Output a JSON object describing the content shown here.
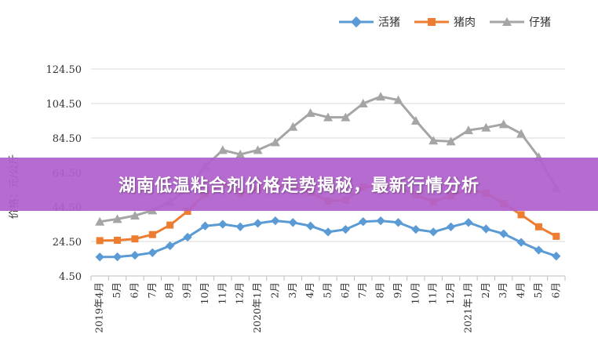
{
  "banner": {
    "title": "湖南低温粘合剂价格走势揭秘，最新行情分析"
  },
  "chart_data": {
    "type": "line",
    "ylabel": "价格：元/公斤",
    "ylim": [
      4.5,
      124.5
    ],
    "yticks": [
      "124.50",
      "104.50",
      "84.50",
      "64.50",
      "44.50",
      "24.50",
      "4.50"
    ],
    "ytick_values": [
      124.5,
      104.5,
      84.5,
      64.5,
      44.5,
      24.5,
      4.5
    ],
    "categories": [
      "2019年4月",
      "5月",
      "6月",
      "7月",
      "8月",
      "9月",
      "10月",
      "11月",
      "12月",
      "2020年1月",
      "2月",
      "3月",
      "4月",
      "5月",
      "6月",
      "7月",
      "8月",
      "9月",
      "10月",
      "11月",
      "12月",
      "2021年1月",
      "2月",
      "3月",
      "4月",
      "5月",
      "6月"
    ],
    "legend_position": "top-right",
    "grid": true,
    "series": [
      {
        "name": "活猪",
        "color": "#5b9bd5",
        "marker": "diamond",
        "values": [
          15.5,
          15.6,
          16.5,
          18.0,
          22.0,
          27.0,
          33.5,
          34.5,
          33.0,
          35.0,
          36.5,
          35.5,
          33.5,
          30.0,
          31.5,
          36.0,
          36.5,
          35.5,
          31.5,
          30.0,
          33.0,
          35.5,
          31.8,
          29.0,
          24.0,
          19.5,
          16.0
        ]
      },
      {
        "name": "猪肉",
        "color": "#ed7d31",
        "marker": "square",
        "values": [
          25.0,
          25.2,
          26.0,
          28.5,
          34.0,
          42.0,
          52.0,
          57.5,
          52.5,
          54.5,
          57.0,
          56.5,
          53.0,
          48.0,
          48.5,
          56.0,
          57.0,
          56.0,
          51.5,
          47.5,
          51.0,
          54.5,
          52.5,
          46.5,
          40.0,
          33.0,
          27.5
        ]
      },
      {
        "name": "仔猪",
        "color": "#a5a5a5",
        "marker": "triangle",
        "values": [
          36.0,
          37.5,
          39.5,
          42.5,
          47.5,
          55.0,
          68.0,
          77.5,
          75.0,
          77.5,
          82.0,
          91.0,
          99.0,
          96.5,
          96.5,
          104.5,
          108.5,
          106.5,
          94.5,
          83.0,
          82.5,
          89.0,
          90.5,
          92.5,
          87.0,
          73.5,
          55.5
        ]
      }
    ]
  }
}
